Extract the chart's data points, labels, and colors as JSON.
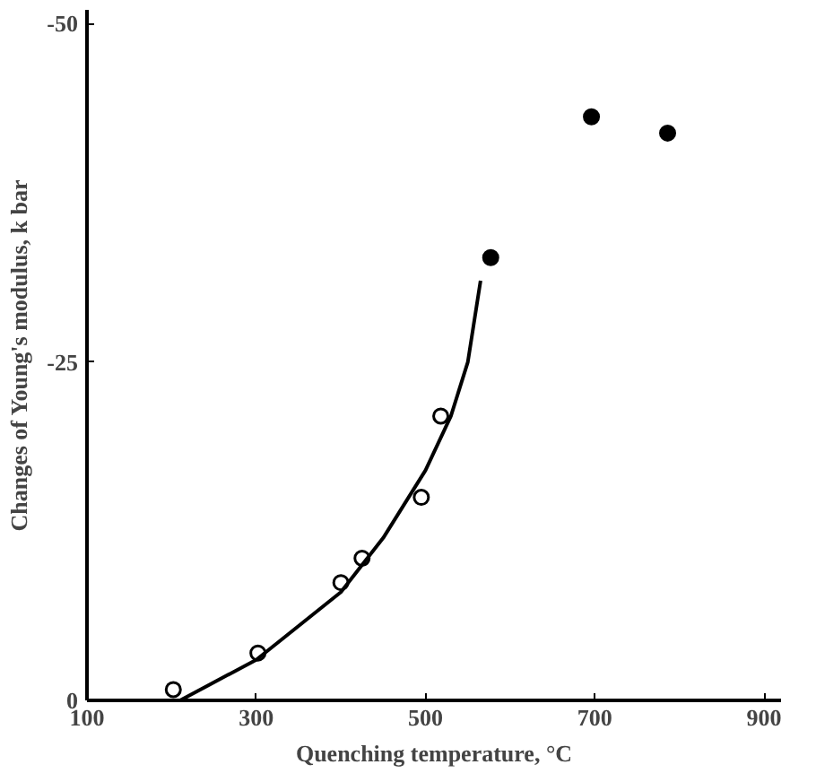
{
  "chart_data": {
    "type": "scatter",
    "xlabel": "Quenching temperature, °C",
    "ylabel": "Changes of Young's modulus, k bar",
    "xlim": [
      100,
      920
    ],
    "xticks": [
      100,
      300,
      500,
      700,
      900
    ],
    "ylim": [
      0,
      -51
    ],
    "yticks": [
      0,
      -25,
      -50
    ],
    "grid": false,
    "series": [
      {
        "marker": "circle",
        "color": "#ffffff",
        "x": [
          202,
          302,
          400,
          425,
          495,
          518
        ],
        "values": [
          -0.8,
          -3.5,
          -8.7,
          -10.5,
          -15,
          -21
        ]
      },
      {
        "marker": "circle",
        "color": "#000000",
        "x": [
          577,
          696,
          786
        ],
        "values": [
          -32.7,
          -43.1,
          -41.9
        ]
      },
      {
        "type": "line",
        "marker": "none",
        "line_style": "solid",
        "color": "#000000",
        "x": [
          210,
          300,
          400,
          450,
          500,
          530,
          550,
          565
        ],
        "values": [
          0,
          -3,
          -8,
          -12,
          -17,
          -21,
          -25,
          -31
        ]
      }
    ]
  }
}
